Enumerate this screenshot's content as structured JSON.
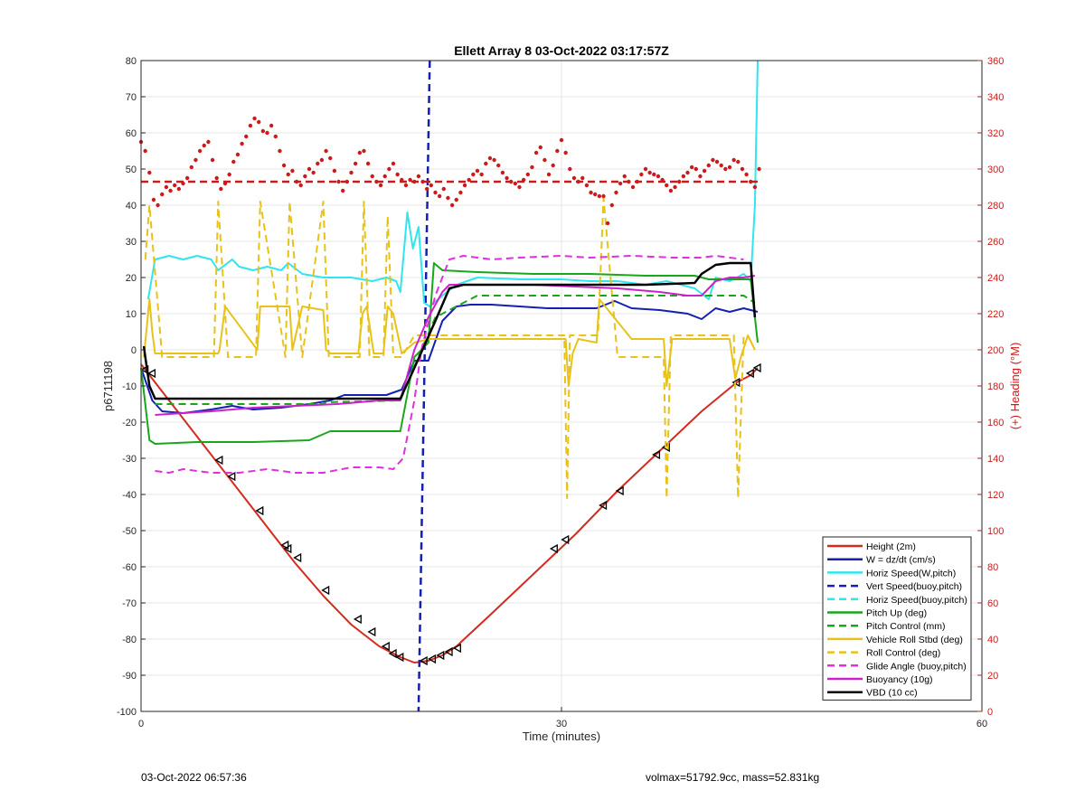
{
  "page": {
    "footer_left": "03-Oct-2022 06:57:36",
    "footer_right": "volmax=51792.9cc, mass=52.831kg"
  },
  "chart_data": {
    "type": "line",
    "title": "Ellett Array 8 03-Oct-2022 03:17:57Z",
    "xlabel": "Time (minutes)",
    "ylabel": "p6711198",
    "y2label": "(+) Heading (°M)",
    "xlim": [
      0,
      60
    ],
    "ylim": [
      -100,
      80
    ],
    "y2lim": [
      0,
      360
    ],
    "xticks": [
      0,
      30,
      60
    ],
    "yticks": [
      -100,
      -90,
      -80,
      -70,
      -60,
      -50,
      -40,
      -30,
      -20,
      -10,
      0,
      10,
      20,
      30,
      40,
      50,
      60,
      70,
      80
    ],
    "y2ticks": [
      0,
      20,
      40,
      60,
      80,
      100,
      120,
      140,
      160,
      180,
      200,
      220,
      240,
      260,
      280,
      300,
      320,
      340,
      360
    ],
    "grid": true,
    "legend_position": "bottom-right",
    "colors": {
      "height": "#d42b1e",
      "w": "#1520b0",
      "horiz": "#2ee6ee",
      "pitch": "#19a619",
      "roll": "#e8c21a",
      "glide": "#e02ee0",
      "buoyancy": "#cc22cc",
      "vbd": "#000000",
      "heading": "#cc1a1a",
      "axis_right": "#cc1a1a"
    },
    "legend": [
      {
        "label": "Height (2m)",
        "color": "#d42b1e",
        "dash": false
      },
      {
        "label": "W = dz/dt (cm/s)",
        "color": "#1520b0",
        "dash": false
      },
      {
        "label": "Horiz Speed(W,pitch)",
        "color": "#2ee6ee",
        "dash": false
      },
      {
        "label": "Vert Speed(buoy,pitch)",
        "color": "#1520b0",
        "dash": true
      },
      {
        "label": "Horiz Speed(buoy,pitch)",
        "color": "#2ee6ee",
        "dash": true
      },
      {
        "label": "Pitch Up (deg)",
        "color": "#19a619",
        "dash": false
      },
      {
        "label": "Pitch Control (mm)",
        "color": "#19a619",
        "dash": true
      },
      {
        "label": "Vehicle Roll Stbd (deg)",
        "color": "#e8c21a",
        "dash": false
      },
      {
        "label": "Roll Control (deg)",
        "color": "#e8c21a",
        "dash": true
      },
      {
        "label": "Glide Angle (buoy,pitch)",
        "color": "#e02ee0",
        "dash": true
      },
      {
        "label": "Buoyancy (10g)",
        "color": "#cc22cc",
        "dash": false
      },
      {
        "label": "VBD (10 cc)",
        "color": "#000000",
        "dash": false
      }
    ],
    "series": [
      {
        "name": "Height (2m)",
        "axis": "left",
        "style": "solid",
        "color": "#d42b1e",
        "width": 2,
        "x": [
          0,
          1,
          3,
          5,
          7,
          9,
          11,
          13,
          15,
          17,
          18.5,
          19.5,
          20.5,
          21.5,
          22.5,
          25,
          28,
          31,
          34,
          37,
          40,
          42.5,
          43.5,
          44
        ],
        "y": [
          -4,
          -9,
          -19,
          -29,
          -39,
          -49,
          -59,
          -68,
          -76,
          -82,
          -85,
          -86.5,
          -86,
          -84.5,
          -82,
          -73,
          -62,
          -51,
          -39,
          -28,
          -17,
          -9,
          -7,
          -5
        ]
      },
      {
        "name": "Depth markers",
        "axis": "left",
        "style": "markers",
        "color": "#000000",
        "x": [
          0.3,
          0.8,
          5.6,
          6.5,
          8.5,
          10.3,
          10.5,
          11.2,
          13.2,
          15.5,
          16.5,
          17.5,
          18,
          18.5,
          20.2,
          20.8,
          21.4,
          22,
          22.6,
          29.5,
          30.3,
          33,
          34.2,
          36.8,
          37.5,
          42.5,
          43.5,
          44
        ],
        "y": [
          -5.5,
          -6.5,
          -30.5,
          -35,
          -44.5,
          -54,
          -55,
          -57.5,
          -66.5,
          -74.5,
          -78,
          -82,
          -84,
          -85,
          -86,
          -85.5,
          -84.5,
          -83.5,
          -82.5,
          -55,
          -52.5,
          -43,
          -39,
          -29,
          -27,
          -9,
          -6.5,
          -5
        ]
      },
      {
        "name": "W = dz/dt (cm/s)",
        "axis": "left",
        "style": "solid",
        "color": "#1520b0",
        "width": 2,
        "x": [
          0,
          0.8,
          1.5,
          3,
          5,
          6.5,
          8,
          10,
          12,
          13.5,
          14.5,
          16,
          17.5,
          18.6,
          19.5,
          20.5,
          21.5,
          22.5,
          23.5,
          25,
          27,
          29,
          31,
          32.5,
          33.8,
          35,
          37,
          39,
          40,
          41,
          42,
          43,
          44
        ],
        "y": [
          -5,
          -14,
          -17,
          -17.5,
          -16.5,
          -15.5,
          -16.5,
          -16,
          -15,
          -14,
          -12.5,
          -12.5,
          -12.5,
          -11,
          -3,
          -3,
          8,
          12,
          12.5,
          12.5,
          12,
          11.5,
          11.5,
          11.5,
          13.5,
          11.5,
          11,
          10,
          8.5,
          11.5,
          10.5,
          11.5,
          10.5
        ]
      },
      {
        "name": "Vert Speed(buoy,pitch)",
        "axis": "left",
        "style": "dashed",
        "color": "#1520b0",
        "width": 2.5,
        "x": [
          20.6,
          19.8
        ],
        "y": [
          80,
          -100
        ]
      },
      {
        "name": "Horiz Speed(W,pitch)",
        "axis": "left",
        "style": "solid",
        "color": "#2ee6ee",
        "width": 2,
        "x": [
          0.5,
          1,
          2,
          3,
          4,
          5,
          5.5,
          6.5,
          7,
          8,
          9,
          10,
          10.5,
          11.5,
          13,
          15,
          16.5,
          17.5,
          18.2,
          18.5,
          19,
          19.4,
          19.8,
          20.2,
          20.6,
          21.5,
          22.5,
          24,
          27,
          30,
          32,
          34,
          36,
          37.5,
          39.5,
          40.5,
          41,
          42,
          43,
          43.5,
          43.8,
          44
        ],
        "y": [
          14,
          25,
          26,
          25,
          26,
          25,
          22,
          25,
          23,
          22,
          23,
          22,
          24,
          21,
          20,
          20,
          19,
          20,
          19,
          16,
          38,
          28,
          34,
          13,
          12,
          15,
          18,
          20,
          19.5,
          19.5,
          19,
          19,
          18,
          19,
          17,
          14,
          20,
          19,
          21,
          19,
          40,
          80
        ]
      },
      {
        "name": "Pitch Up (deg)",
        "axis": "left",
        "style": "solid",
        "color": "#19a619",
        "width": 2,
        "x": [
          0,
          0.6,
          1,
          4,
          8,
          12,
          13.2,
          13.5,
          17,
          18.5,
          19.5,
          20.5,
          20.9,
          21.5,
          24,
          28,
          32,
          36,
          39.5,
          40.5,
          42,
          43.5,
          44
        ],
        "y": [
          -5,
          -25,
          -26,
          -25.5,
          -25.5,
          -25,
          -23,
          -22.5,
          -22.5,
          -22.5,
          -2,
          2,
          24,
          22,
          21.5,
          21,
          21,
          20.5,
          20.5,
          19.5,
          19.5,
          19.5,
          2
        ]
      },
      {
        "name": "Pitch Control (mm)",
        "axis": "left",
        "style": "dashed",
        "color": "#19a619",
        "width": 2,
        "x": [
          1,
          13,
          13.2,
          18.5,
          20,
          21,
          24,
          43,
          43.8
        ],
        "y": [
          -15,
          -15,
          -14.5,
          -14,
          0,
          9,
          15,
          15,
          13
        ]
      },
      {
        "name": "Vehicle Roll Stbd (deg)",
        "axis": "left",
        "style": "solid",
        "color": "#e8c21a",
        "width": 2,
        "x": [
          0.2,
          0.6,
          0.8,
          1,
          5.5,
          5.6,
          6,
          8.3,
          8.5,
          10.6,
          10.8,
          11.5,
          13,
          13.2,
          13.5,
          15.5,
          15.8,
          16.1,
          16.6,
          17.3,
          17.6,
          18,
          18.6,
          19.5,
          20.6,
          21,
          28,
          30.3,
          30.5,
          30.8,
          31.2,
          32.5,
          32.7,
          35,
          37.3,
          37.5,
          37.9,
          38.3,
          42,
          42.4,
          42.8,
          43.3,
          43.8
        ],
        "y": [
          -2,
          14,
          5,
          -1,
          -1,
          0,
          12,
          0,
          12,
          12,
          0,
          12,
          11,
          0,
          -1,
          -1,
          10,
          12,
          -1,
          -1,
          12,
          10,
          -1,
          2,
          3,
          3,
          3,
          3,
          -10,
          -1,
          3,
          2,
          14,
          3,
          3,
          -10,
          3,
          3,
          3,
          -8,
          -2,
          4,
          0
        ]
      },
      {
        "name": "Roll Control (deg)",
        "axis": "left",
        "style": "dashed",
        "color": "#e8c21a",
        "width": 2,
        "x": [
          0.3,
          0.6,
          1.5,
          5.2,
          5.5,
          6.2,
          8.2,
          8.5,
          10.3,
          10.6,
          11.5,
          13,
          13.4,
          15.6,
          15.9,
          16.3,
          17.3,
          17.6,
          18,
          18.6,
          19.5,
          30.2,
          30.4,
          30.6,
          32.6,
          33,
          34,
          37.3,
          37.5,
          37.8,
          42.3,
          42.6,
          43
        ],
        "y": [
          25,
          40,
          -2,
          -2,
          41,
          -2,
          -2,
          41,
          -2,
          41,
          -2,
          41,
          -2,
          -2,
          41,
          -2,
          -2,
          37,
          -2,
          -2,
          4,
          4,
          -41,
          4,
          4,
          42,
          -2,
          -2,
          -41,
          4,
          4,
          -41,
          4
        ]
      },
      {
        "name": "Glide Angle (buoy,pitch)",
        "axis": "left",
        "style": "dashed",
        "color": "#e02ee0",
        "width": 2,
        "x": [
          1,
          2,
          3,
          5,
          7,
          9,
          11,
          13,
          15,
          17,
          18,
          18.7,
          19.5,
          20,
          21,
          22,
          23,
          25,
          27,
          30,
          32,
          35,
          38,
          40,
          41,
          43
        ],
        "y": [
          -33.5,
          -34,
          -33,
          -34,
          -34,
          -33,
          -34,
          -34,
          -32.5,
          -32.5,
          -33,
          -30,
          -14,
          0,
          15,
          25,
          26,
          25,
          25.5,
          26,
          25.5,
          26,
          25.5,
          25.5,
          26,
          25
        ]
      },
      {
        "name": "Buoyancy (10g)",
        "axis": "left",
        "style": "solid",
        "color": "#cc22cc",
        "width": 2,
        "x": [
          1,
          3,
          5,
          8,
          11,
          14,
          17,
          18.5,
          19.5,
          20.5,
          21.5,
          22,
          24,
          28,
          31,
          34,
          37,
          39,
          40,
          41,
          42,
          43,
          43.8
        ],
        "y": [
          -18,
          -17.5,
          -17,
          -16,
          -15.5,
          -15,
          -14,
          -14,
          0,
          9,
          16,
          18,
          18,
          18,
          17.5,
          17,
          16,
          15,
          15,
          19,
          20,
          20,
          20.5
        ]
      },
      {
        "name": "VBD (10 cc)",
        "axis": "left",
        "style": "solid",
        "color": "#000000",
        "width": 2.5,
        "x": [
          0.2,
          0.3,
          0.6,
          1,
          5,
          10,
          15,
          17,
          18.5,
          19.5,
          21,
          22,
          23,
          24,
          30,
          36,
          39.5,
          40,
          41,
          42,
          43.5,
          43.8
        ],
        "y": [
          1,
          -2,
          -10,
          -13.5,
          -13.5,
          -13.5,
          -13.5,
          -13.5,
          -13.5,
          -5,
          8,
          17,
          18,
          18,
          18,
          18,
          18.5,
          21,
          23.5,
          24,
          24,
          9
        ]
      },
      {
        "name": "Heading",
        "axis": "right",
        "style": "dots",
        "color": "#cc1a1a",
        "x": [
          0,
          0.3,
          0.6,
          0.9,
          1.2,
          1.5,
          1.8,
          2.1,
          2.4,
          2.7,
          3.0,
          3.3,
          3.6,
          3.9,
          4.2,
          4.5,
          4.8,
          5.1,
          5.4,
          5.7,
          6.0,
          6.3,
          6.6,
          6.9,
          7.2,
          7.5,
          7.8,
          8.1,
          8.4,
          8.7,
          9.0,
          9.3,
          9.6,
          9.9,
          10.2,
          10.5,
          10.8,
          11.1,
          11.4,
          11.7,
          12.0,
          12.3,
          12.6,
          12.9,
          13.2,
          13.5,
          13.8,
          14.1,
          14.4,
          14.7,
          15.0,
          15.3,
          15.6,
          15.9,
          16.2,
          16.5,
          16.8,
          17.1,
          17.4,
          17.7,
          18.0,
          18.3,
          18.6,
          18.9,
          19.2,
          19.5,
          19.8,
          20.1,
          20.4,
          20.7,
          21.0,
          21.3,
          21.6,
          21.9,
          22.2,
          22.5,
          22.8,
          23.1,
          23.4,
          23.7,
          24.0,
          24.3,
          24.6,
          24.9,
          25.2,
          25.5,
          25.8,
          26.1,
          26.4,
          26.7,
          27.0,
          27.3,
          27.6,
          27.9,
          28.2,
          28.5,
          28.8,
          29.1,
          29.4,
          29.7,
          30.0,
          30.3,
          30.6,
          30.9,
          31.2,
          31.5,
          31.8,
          32.1,
          32.4,
          32.7,
          33.0,
          33.3,
          33.6,
          33.9,
          34.2,
          34.5,
          34.8,
          35.1,
          35.4,
          35.7,
          36.0,
          36.3,
          36.6,
          36.9,
          37.2,
          37.5,
          37.8,
          38.1,
          38.4,
          38.7,
          39.0,
          39.3,
          39.6,
          39.9,
          40.2,
          40.5,
          40.8,
          41.1,
          41.4,
          41.7,
          42.0,
          42.3,
          42.6,
          42.9,
          43.2,
          43.5,
          43.8,
          44.1
        ],
        "y": [
          315,
          310,
          298,
          283,
          280,
          286,
          290,
          288,
          291,
          289,
          292,
          295,
          301,
          305,
          310,
          313,
          315,
          305,
          295,
          289,
          292,
          297,
          304,
          308,
          314,
          318,
          324,
          328,
          326,
          321,
          320,
          324,
          318,
          310,
          302,
          297,
          299,
          293,
          291,
          296,
          300,
          298,
          303,
          305,
          310,
          306,
          299,
          293,
          288,
          293,
          298,
          303,
          309,
          310,
          303,
          296,
          293,
          291,
          296,
          300,
          303,
          297,
          294,
          291,
          294,
          293,
          296,
          293,
          289,
          291,
          287,
          285,
          289,
          284,
          280,
          283,
          287,
          291,
          294,
          297,
          299,
          297,
          303,
          306,
          305,
          302,
          298,
          295,
          293,
          292,
          290,
          294,
          297,
          301,
          309,
          312,
          305,
          297,
          302,
          310,
          316,
          309,
          300,
          295,
          293,
          295,
          291,
          287,
          286,
          285,
          285,
          270,
          280,
          287,
          292,
          296,
          293,
          290,
          293,
          297,
          300,
          298,
          297,
          296,
          294,
          291,
          288,
          290,
          293,
          296,
          298,
          301,
          300,
          296,
          299,
          302,
          305,
          304,
          302,
          300,
          301,
          305,
          304,
          300,
          297,
          293,
          290,
          300
        ]
      },
      {
        "name": "Heading mean",
        "axis": "right",
        "style": "dashed",
        "color": "#cc1a1a",
        "width": 2.5,
        "x": [
          0,
          44
        ],
        "y": [
          293,
          293
        ]
      }
    ]
  }
}
